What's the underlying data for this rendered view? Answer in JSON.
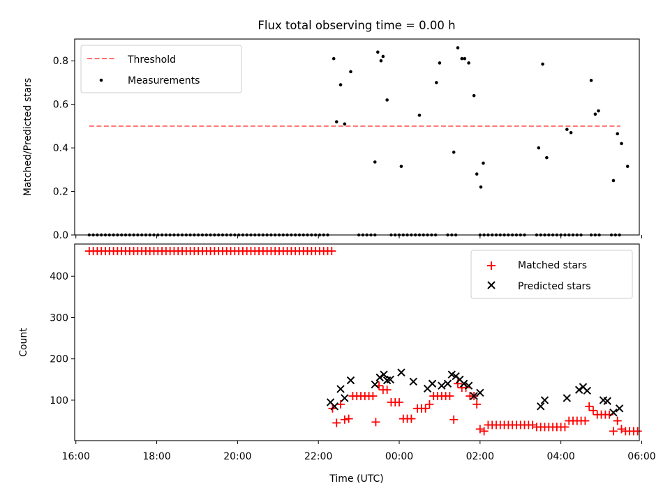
{
  "colors": {
    "threshold": "#ff7070",
    "measurement": "#000000",
    "matched": "#ff0000",
    "predicted": "#000000"
  },
  "chart_data": [
    {
      "type": "scatter",
      "title": "Flux total observing time = 0.00 h",
      "xlabel": "",
      "ylabel": "Matched/Predicted stars",
      "xlim": [
        -0.03,
        13.94
      ],
      "ylim": [
        0.0,
        0.9
      ],
      "yticks": [
        0.0,
        0.2,
        0.4,
        0.6,
        0.8
      ],
      "ytick_labels": [
        "0.0",
        "0.2",
        "0.4",
        "0.6",
        "0.8"
      ],
      "legend": {
        "position": "top-left",
        "entries": [
          "Threshold",
          "Measurements"
        ]
      },
      "threshold": {
        "name": "Threshold",
        "value": 0.5,
        "x_range": [
          0.33,
          13.47
        ]
      },
      "measurements": {
        "name": "Measurements",
        "zero_x_ranges": [
          [
            0.33,
            6.3
          ],
          [
            7.0,
            7.45
          ],
          [
            7.8,
            8.3
          ],
          [
            8.4,
            8.9
          ],
          [
            9.2,
            9.45
          ],
          [
            10.0,
            11.1
          ],
          [
            11.4,
            12.5
          ],
          [
            12.75,
            12.95
          ],
          [
            13.25,
            13.45
          ]
        ],
        "zero_step": 0.1,
        "points": [
          [
            6.38,
            0.81
          ],
          [
            6.45,
            0.52
          ],
          [
            6.55,
            0.69
          ],
          [
            6.65,
            0.51
          ],
          [
            6.8,
            0.75
          ],
          [
            7.4,
            0.335
          ],
          [
            7.47,
            0.84
          ],
          [
            7.55,
            0.8
          ],
          [
            7.6,
            0.82
          ],
          [
            7.7,
            0.62
          ],
          [
            8.05,
            0.315
          ],
          [
            8.5,
            0.55
          ],
          [
            8.92,
            0.7
          ],
          [
            9.0,
            0.79
          ],
          [
            9.35,
            0.38
          ],
          [
            9.45,
            0.86
          ],
          [
            9.55,
            0.81
          ],
          [
            9.62,
            0.81
          ],
          [
            9.72,
            0.79
          ],
          [
            9.85,
            0.64
          ],
          [
            9.92,
            0.28
          ],
          [
            10.02,
            0.22
          ],
          [
            10.08,
            0.33
          ],
          [
            11.45,
            0.4
          ],
          [
            11.55,
            0.785
          ],
          [
            11.65,
            0.355
          ],
          [
            12.15,
            0.485
          ],
          [
            12.25,
            0.47
          ],
          [
            12.75,
            0.71
          ],
          [
            12.85,
            0.555
          ],
          [
            12.93,
            0.57
          ],
          [
            13.3,
            0.25
          ],
          [
            13.4,
            0.465
          ],
          [
            13.5,
            0.42
          ],
          [
            13.65,
            0.315
          ]
        ]
      }
    },
    {
      "type": "scatter",
      "title": "",
      "xlabel": "Time (UTC)",
      "ylabel": "Count",
      "xlim": [
        -0.03,
        13.94
      ],
      "ylim": [
        2,
        478
      ],
      "yticks": [
        100,
        200,
        300,
        400
      ],
      "ytick_labels": [
        "100",
        "200",
        "300",
        "400"
      ],
      "xticks": [
        0.0,
        2.0,
        4.0,
        6.0,
        8.0,
        10.0,
        12.0,
        14.0
      ],
      "xtick_labels": [
        "16:00",
        "18:00",
        "20:00",
        "22:00",
        "00:00",
        "02:00",
        "04:00",
        "06:00"
      ],
      "legend": {
        "position": "top-right",
        "entries": [
          "Matched stars",
          "Predicted stars"
        ]
      },
      "matched": {
        "name": "Matched stars",
        "constant_x_range": [
          0.33,
          6.35
        ],
        "constant_value": 461,
        "constant_step": 0.1,
        "points": [
          [
            6.35,
            80
          ],
          [
            6.45,
            45
          ],
          [
            6.55,
            90
          ],
          [
            6.65,
            53
          ],
          [
            6.75,
            55
          ],
          [
            6.85,
            110
          ],
          [
            6.95,
            110
          ],
          [
            7.05,
            110
          ],
          [
            7.15,
            110
          ],
          [
            7.25,
            110
          ],
          [
            7.35,
            110
          ],
          [
            7.42,
            47
          ],
          [
            7.5,
            135
          ],
          [
            7.6,
            125
          ],
          [
            7.7,
            125
          ],
          [
            7.8,
            95
          ],
          [
            7.9,
            95
          ],
          [
            8.0,
            95
          ],
          [
            8.1,
            55
          ],
          [
            8.2,
            55
          ],
          [
            8.3,
            55
          ],
          [
            8.45,
            80
          ],
          [
            8.55,
            80
          ],
          [
            8.65,
            80
          ],
          [
            8.75,
            90
          ],
          [
            8.85,
            110
          ],
          [
            8.95,
            110
          ],
          [
            9.05,
            110
          ],
          [
            9.15,
            110
          ],
          [
            9.25,
            110
          ],
          [
            9.35,
            53
          ],
          [
            9.45,
            140
          ],
          [
            9.55,
            130
          ],
          [
            9.65,
            130
          ],
          [
            9.75,
            110
          ],
          [
            9.85,
            110
          ],
          [
            9.92,
            90
          ],
          [
            10.0,
            30
          ],
          [
            10.1,
            25
          ],
          [
            10.2,
            40
          ],
          [
            10.3,
            40
          ],
          [
            10.4,
            40
          ],
          [
            10.5,
            40
          ],
          [
            10.6,
            40
          ],
          [
            10.7,
            40
          ],
          [
            10.8,
            40
          ],
          [
            10.9,
            40
          ],
          [
            11.0,
            40
          ],
          [
            11.1,
            40
          ],
          [
            11.2,
            40
          ],
          [
            11.3,
            40
          ],
          [
            11.4,
            35
          ],
          [
            11.5,
            35
          ],
          [
            11.6,
            35
          ],
          [
            11.7,
            35
          ],
          [
            11.8,
            35
          ],
          [
            11.9,
            35
          ],
          [
            12.0,
            35
          ],
          [
            12.1,
            35
          ],
          [
            12.2,
            50
          ],
          [
            12.3,
            50
          ],
          [
            12.4,
            50
          ],
          [
            12.5,
            50
          ],
          [
            12.6,
            50
          ],
          [
            12.7,
            85
          ],
          [
            12.8,
            75
          ],
          [
            12.9,
            65
          ],
          [
            13.0,
            65
          ],
          [
            13.1,
            65
          ],
          [
            13.2,
            65
          ],
          [
            13.3,
            25
          ],
          [
            13.4,
            50
          ],
          [
            13.5,
            30
          ],
          [
            13.6,
            25
          ],
          [
            13.7,
            25
          ],
          [
            13.8,
            25
          ],
          [
            13.9,
            25
          ]
        ]
      },
      "predicted": {
        "name": "Predicted stars",
        "points": [
          [
            6.3,
            95
          ],
          [
            6.4,
            85
          ],
          [
            6.55,
            127
          ],
          [
            6.65,
            105
          ],
          [
            6.8,
            148
          ],
          [
            7.4,
            138
          ],
          [
            7.52,
            155
          ],
          [
            7.62,
            162
          ],
          [
            7.7,
            148
          ],
          [
            7.78,
            150
          ],
          [
            8.05,
            167
          ],
          [
            8.35,
            145
          ],
          [
            8.7,
            128
          ],
          [
            8.82,
            140
          ],
          [
            9.05,
            135
          ],
          [
            9.2,
            140
          ],
          [
            9.3,
            162
          ],
          [
            9.4,
            158
          ],
          [
            9.5,
            150
          ],
          [
            9.6,
            140
          ],
          [
            9.72,
            135
          ],
          [
            9.85,
            110
          ],
          [
            10.0,
            118
          ],
          [
            11.5,
            85
          ],
          [
            11.6,
            100
          ],
          [
            12.15,
            105
          ],
          [
            12.45,
            125
          ],
          [
            12.55,
            132
          ],
          [
            12.65,
            123
          ],
          [
            13.05,
            100
          ],
          [
            13.15,
            98
          ],
          [
            13.3,
            70
          ],
          [
            13.45,
            80
          ]
        ]
      }
    }
  ]
}
